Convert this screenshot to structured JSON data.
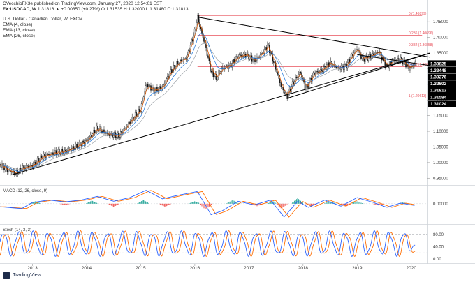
{
  "header": {
    "publisher": "CVecchioFX3e published on TradingView.com, January 27, 2020 12:54:01 EST",
    "symbol": "FX:USDCAD, W",
    "ohlc": "1.31816 ▲ +0.00350 (+0.27%) O:1.31535 H:1.32000 L:1.31480 C:1.31813",
    "title": "U.S. Dollar / Canadian Dollar, W, FXCM",
    "ema_labels": [
      "EMA (4, close)",
      "EMA (13, close)",
      "EMA (26, close)"
    ]
  },
  "colors": {
    "candle": "#111111",
    "ema4": "#e65c00",
    "ema13": "#1a73d9",
    "ema26": "#9aa0a6",
    "fib": "#e8505b",
    "trendline": "#000000",
    "macd_line": "#2962ff",
    "signal_line": "#ff6d00",
    "hist_up": "#26a69a",
    "hist_down": "#ef5350",
    "stoch_k": "#2962ff",
    "stoch_d": "#ff6d00",
    "label_bg": "#000000",
    "label_fg": "#ffffff"
  },
  "chart_data": [
    {
      "type": "candlestick",
      "title": "U.S. Dollar / Canadian Dollar, W, FXCM",
      "x_range": [
        2012.4,
        2020.3
      ],
      "ylim": [
        0.935,
        1.475
      ],
      "y_ticks": [
        "1.45000",
        "1.40000",
        "1.35000",
        "1.30000",
        "1.25000",
        "1.20000",
        "1.15000",
        "1.10000",
        "1.05000",
        "1.00000",
        "0.95000"
      ],
      "x_tick_labels": [
        "2013",
        "2014",
        "2015",
        "2016",
        "2017",
        "2018",
        "2019",
        "2020"
      ],
      "x_tick_values": [
        2013,
        2014,
        2015,
        2016,
        2017,
        2018,
        2019,
        2020
      ],
      "price_path": [
        [
          2012.4,
          0.995
        ],
        [
          2012.55,
          0.975
        ],
        [
          2012.7,
          0.965
        ],
        [
          2012.85,
          0.985
        ],
        [
          2013.0,
          0.99
        ],
        [
          2013.2,
          1.02
        ],
        [
          2013.4,
          1.03
        ],
        [
          2013.6,
          1.035
        ],
        [
          2013.8,
          1.05
        ],
        [
          2014.0,
          1.07
        ],
        [
          2014.2,
          1.11
        ],
        [
          2014.4,
          1.09
        ],
        [
          2014.6,
          1.085
        ],
        [
          2014.8,
          1.13
        ],
        [
          2015.0,
          1.17
        ],
        [
          2015.1,
          1.25
        ],
        [
          2015.25,
          1.23
        ],
        [
          2015.4,
          1.24
        ],
        [
          2015.55,
          1.29
        ],
        [
          2015.7,
          1.32
        ],
        [
          2015.85,
          1.335
        ],
        [
          2016.0,
          1.42
        ],
        [
          2016.05,
          1.465
        ],
        [
          2016.12,
          1.42
        ],
        [
          2016.2,
          1.37
        ],
        [
          2016.3,
          1.29
        ],
        [
          2016.4,
          1.27
        ],
        [
          2016.5,
          1.3
        ],
        [
          2016.65,
          1.31
        ],
        [
          2016.8,
          1.34
        ],
        [
          2016.95,
          1.345
        ],
        [
          2017.1,
          1.325
        ],
        [
          2017.25,
          1.35
        ],
        [
          2017.35,
          1.375
        ],
        [
          2017.5,
          1.3
        ],
        [
          2017.6,
          1.24
        ],
        [
          2017.7,
          1.21
        ],
        [
          2017.8,
          1.25
        ],
        [
          2017.95,
          1.29
        ],
        [
          2018.05,
          1.235
        ],
        [
          2018.2,
          1.285
        ],
        [
          2018.35,
          1.295
        ],
        [
          2018.5,
          1.32
        ],
        [
          2018.65,
          1.3
        ],
        [
          2018.8,
          1.31
        ],
        [
          2018.95,
          1.355
        ],
        [
          2019.0,
          1.365
        ],
        [
          2019.1,
          1.33
        ],
        [
          2019.25,
          1.34
        ],
        [
          2019.4,
          1.355
        ],
        [
          2019.55,
          1.305
        ],
        [
          2019.65,
          1.325
        ],
        [
          2019.8,
          1.33
        ],
        [
          2019.9,
          1.315
        ],
        [
          2019.95,
          1.3
        ],
        [
          2020.0,
          1.305
        ],
        [
          2020.07,
          1.318
        ]
      ],
      "fibonacci": [
        {
          "label": "0 (1.46899)",
          "value": 1.46899
        },
        {
          "label": "0.236 (1.40696)",
          "value": 1.40696
        },
        {
          "label": "0.382 (1.36858)",
          "value": 1.36858
        },
        {
          "label": "0.618 (1.30654)",
          "value": 1.30654
        },
        {
          "label": "1 (1.20613)",
          "value": 1.20613
        }
      ],
      "trendlines": [
        {
          "from": [
            2012.6,
            0.96
          ],
          "to": [
            2020.35,
            1.35
          ]
        },
        {
          "from": [
            2016.05,
            1.465
          ],
          "to": [
            2020.35,
            1.337
          ]
        },
        {
          "from": [
            2017.7,
            1.205
          ],
          "to": [
            2020.35,
            1.35
          ]
        },
        {
          "from": [
            2019.0,
            1.345
          ],
          "to": [
            2020.35,
            1.31
          ]
        }
      ],
      "price_labels": [
        "1.33825",
        "1.33448",
        "1.33276",
        "1.32602",
        "1.31813",
        "1.31584",
        "1.31024"
      ],
      "price_label_values": [
        1.33825,
        1.33448,
        1.33276,
        1.32602,
        1.31813,
        1.31584,
        1.31024
      ],
      "series": [
        {
          "name": "EMA (4, close)"
        },
        {
          "name": "EMA (13, close)"
        },
        {
          "name": "EMA (26, close)"
        }
      ]
    },
    {
      "type": "line",
      "title": "MACD (12, 26, close, 9)",
      "ylim": [
        -0.03,
        0.025
      ],
      "y_ticks": [
        "0.00000"
      ],
      "macd_path": [
        [
          2012.4,
          -0.005
        ],
        [
          2012.8,
          -0.008
        ],
        [
          2013.0,
          0.002
        ],
        [
          2013.3,
          0.006
        ],
        [
          2013.6,
          0.003
        ],
        [
          2013.9,
          0.006
        ],
        [
          2014.2,
          0.012
        ],
        [
          2014.5,
          0.004
        ],
        [
          2014.8,
          0.01
        ],
        [
          2015.1,
          0.022
        ],
        [
          2015.4,
          0.008
        ],
        [
          2015.7,
          0.014
        ],
        [
          2016.05,
          0.02
        ],
        [
          2016.3,
          -0.018
        ],
        [
          2016.5,
          -0.012
        ],
        [
          2016.8,
          0.004
        ],
        [
          2017.1,
          -0.002
        ],
        [
          2017.4,
          0.006
        ],
        [
          2017.65,
          -0.022
        ],
        [
          2017.9,
          0.004
        ],
        [
          2018.1,
          -0.006
        ],
        [
          2018.4,
          0.006
        ],
        [
          2018.7,
          -0.004
        ],
        [
          2019.0,
          0.01
        ],
        [
          2019.3,
          0.002
        ],
        [
          2019.55,
          -0.006
        ],
        [
          2019.8,
          0.001
        ],
        [
          2020.07,
          -0.003
        ]
      ],
      "signal_lag_years": 0.09,
      "histogram_bars": [
        [
          2013.05,
          0.004
        ],
        [
          2013.6,
          -0.002
        ],
        [
          2014.1,
          0.005
        ],
        [
          2014.5,
          -0.005
        ],
        [
          2015.05,
          0.006
        ],
        [
          2015.45,
          -0.005
        ],
        [
          2016.0,
          0.004
        ],
        [
          2016.2,
          -0.01
        ],
        [
          2016.7,
          0.006
        ],
        [
          2017.15,
          -0.004
        ],
        [
          2017.45,
          0.004
        ],
        [
          2017.6,
          -0.008
        ],
        [
          2017.9,
          0.009
        ],
        [
          2018.15,
          -0.004
        ],
        [
          2018.5,
          0.004
        ],
        [
          2018.8,
          -0.004
        ],
        [
          2019.0,
          0.004
        ],
        [
          2019.4,
          -0.003
        ],
        [
          2019.85,
          0.002
        ]
      ]
    },
    {
      "type": "line",
      "title": "Stoch (14, 3, 3)",
      "ylim": [
        0,
        100
      ],
      "y_ticks": [
        "80.00",
        "40.00",
        "0.00"
      ],
      "y_tick_values": [
        80,
        40,
        0
      ],
      "bands": [
        80,
        20
      ],
      "oscillation": {
        "start": 2012.4,
        "end": 2020.07,
        "cycles": 28,
        "min": 8,
        "max": 92
      },
      "final_k": 45,
      "final_d": 25
    }
  ]
}
